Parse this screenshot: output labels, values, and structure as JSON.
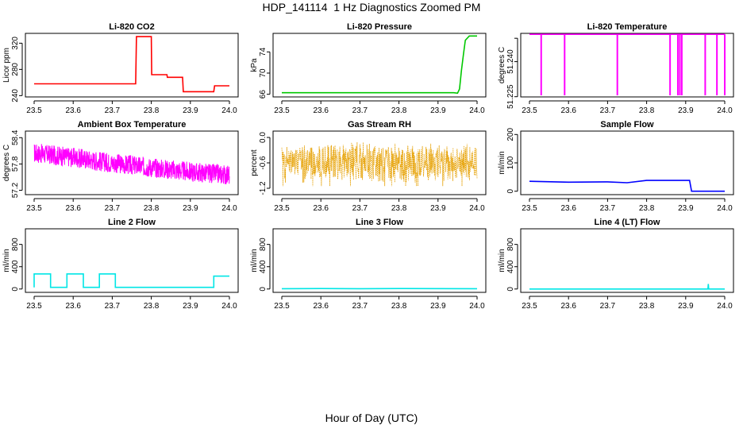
{
  "figure": {
    "title": "HDP_141114  1 Hz Diagnostics Zoomed PM",
    "xlabel": "Hour of Day (UTC)"
  },
  "chart_data": [
    {
      "type": "line",
      "title": "Li-820 CO2",
      "ylabel": "Licor ppm",
      "color": "#ff0000",
      "xlim": [
        23.5,
        24.0
      ],
      "ylim": [
        238,
        335
      ],
      "xticks": [
        23.5,
        23.6,
        23.7,
        23.8,
        23.9,
        24.0
      ],
      "yticks": [
        {
          "v": 240,
          "label": "240"
        },
        {
          "v": 280,
          "label": "280"
        },
        {
          "v": 320,
          "label": "320"
        }
      ],
      "series": [
        {
          "name": "CO2",
          "x": [
            23.5,
            23.76,
            23.762,
            23.8,
            23.801,
            23.84,
            23.841,
            23.88,
            23.882,
            23.93,
            23.96,
            23.962,
            24.0
          ],
          "values": [
            258,
            258,
            330,
            330,
            272,
            272,
            268,
            268,
            246,
            246,
            246,
            255,
            255
          ]
        }
      ]
    },
    {
      "type": "line",
      "title": "Li-820 Pressure",
      "ylabel": "kPa",
      "color": "#00c800",
      "xlim": [
        23.5,
        24.0
      ],
      "ylim": [
        65.5,
        77.5
      ],
      "xticks": [
        23.5,
        23.6,
        23.7,
        23.8,
        23.9,
        24.0
      ],
      "yticks": [
        {
          "v": 66,
          "label": "66"
        },
        {
          "v": 70,
          "label": "70"
        },
        {
          "v": 74,
          "label": "74"
        }
      ],
      "series": [
        {
          "name": "Pressure",
          "x": [
            23.5,
            23.94,
            23.95,
            23.955,
            23.96,
            23.965,
            23.97,
            23.98,
            24.0
          ],
          "values": [
            66.3,
            66.3,
            66.2,
            67.0,
            70.5,
            73.5,
            76.2,
            77.0,
            77.0
          ]
        }
      ]
    },
    {
      "type": "line",
      "title": "Li-820 Temperature",
      "ylabel": "degrees C",
      "color": "#ff00ff",
      "xlim": [
        23.5,
        24.0
      ],
      "ylim": [
        51.2249,
        51.2521
      ],
      "xticks": [
        23.5,
        23.6,
        23.7,
        23.8,
        23.9,
        24.0
      ],
      "yticks": [
        {
          "v": 51.225,
          "label": "51.225"
        },
        {
          "v": 51.24,
          "label": "51.240"
        },
        {
          "v": 51.25,
          "label": ""
        }
      ],
      "baseline": 51.2517,
      "spikes": [
        23.53,
        23.59,
        23.725,
        23.86,
        23.88,
        23.885,
        23.89,
        23.95,
        23.98,
        24.0
      ]
    },
    {
      "type": "line",
      "title": "Ambient Box Temperature",
      "ylabel": "degrees C",
      "color": "#ff00ff",
      "xlim": [
        23.5,
        24.0
      ],
      "ylim": [
        57.1,
        58.55
      ],
      "xticks": [
        23.5,
        23.6,
        23.7,
        23.8,
        23.9,
        24.0
      ],
      "yticks": [
        {
          "v": 57.2,
          "label": "57.2"
        },
        {
          "v": 57.8,
          "label": "57.8"
        },
        {
          "v": 58.4,
          "label": "58.4"
        }
      ],
      "trend": {
        "x": [
          23.5,
          23.6,
          23.7,
          23.8,
          23.9,
          24.0
        ],
        "values": [
          58.05,
          57.95,
          57.82,
          57.72,
          57.62,
          57.55
        ]
      },
      "noise": 0.45
    },
    {
      "type": "scatter",
      "title": "Gas Stream RH",
      "ylabel": "percent",
      "color": "#e6a000",
      "xlim": [
        23.5,
        24.0
      ],
      "ylim": [
        -1.35,
        0.15
      ],
      "xticks": [
        23.5,
        23.6,
        23.7,
        23.8,
        23.9,
        24.0
      ],
      "yticks": [
        {
          "v": -1.2,
          "label": "-1.2"
        },
        {
          "v": -0.6,
          "label": "-0.6"
        },
        {
          "v": 0.0,
          "label": "0.0"
        }
      ],
      "center": -0.6,
      "spread": 0.5
    },
    {
      "type": "line",
      "title": "Sample Flow",
      "ylabel": "ml/min",
      "color": "#0000ff",
      "xlim": [
        23.5,
        24.0
      ],
      "ylim": [
        -12,
        212
      ],
      "xticks": [
        23.5,
        23.6,
        23.7,
        23.8,
        23.9,
        24.0
      ],
      "yticks": [
        {
          "v": 0,
          "label": "0"
        },
        {
          "v": 100,
          "label": "100"
        },
        {
          "v": 200,
          "label": "200"
        }
      ],
      "series": [
        {
          "name": "Sample Flow",
          "x": [
            23.5,
            23.6,
            23.7,
            23.75,
            23.8,
            23.91,
            23.915,
            24.0
          ],
          "values": [
            35,
            32,
            33,
            30,
            38,
            38,
            0,
            0
          ]
        }
      ]
    },
    {
      "type": "line",
      "title": "Line 2 Flow",
      "ylabel": "ml/min",
      "color": "#00e6e6",
      "xlim": [
        23.5,
        24.0
      ],
      "ylim": [
        -60,
        1080
      ],
      "xticks": [
        23.5,
        23.6,
        23.7,
        23.8,
        23.9,
        24.0
      ],
      "yticks": [
        {
          "v": 0,
          "label": "0"
        },
        {
          "v": 400,
          "label": "400"
        },
        {
          "v": 800,
          "label": "800"
        }
      ],
      "series": [
        {
          "name": "Line 2 Flow",
          "x": [
            23.5,
            23.5,
            23.542,
            23.542,
            23.584,
            23.584,
            23.626,
            23.626,
            23.667,
            23.667,
            23.708,
            23.708,
            23.96,
            23.96,
            24.0
          ],
          "values": [
            30,
            270,
            270,
            30,
            30,
            270,
            270,
            30,
            30,
            270,
            270,
            30,
            30,
            230,
            230
          ]
        }
      ]
    },
    {
      "type": "line",
      "title": "Line 3 Flow",
      "ylabel": "ml/min",
      "color": "#00e6e6",
      "xlim": [
        23.5,
        24.0
      ],
      "ylim": [
        -60,
        1080
      ],
      "xticks": [
        23.5,
        23.6,
        23.7,
        23.8,
        23.9,
        24.0
      ],
      "yticks": [
        {
          "v": 0,
          "label": "0"
        },
        {
          "v": 400,
          "label": "400"
        },
        {
          "v": 800,
          "label": "800"
        }
      ],
      "series": [
        {
          "name": "Line 3 Flow",
          "x": [
            23.5,
            23.6,
            23.7,
            23.8,
            23.9,
            24.0
          ],
          "values": [
            5,
            8,
            6,
            9,
            7,
            5
          ]
        }
      ]
    },
    {
      "type": "line",
      "title": "Line 4 (LT) Flow",
      "ylabel": "ml/min",
      "color": "#00e6e6",
      "xlim": [
        23.5,
        24.0
      ],
      "ylim": [
        -60,
        1080
      ],
      "xticks": [
        23.5,
        23.6,
        23.7,
        23.8,
        23.9,
        24.0
      ],
      "yticks": [
        {
          "v": 0,
          "label": "0"
        },
        {
          "v": 400,
          "label": "400"
        },
        {
          "v": 800,
          "label": "800"
        }
      ],
      "series": [
        {
          "name": "Line 4 Flow",
          "x": [
            23.5,
            23.957,
            23.958,
            23.959,
            23.96,
            24.0
          ],
          "values": [
            0,
            0,
            90,
            0,
            0,
            0
          ]
        }
      ]
    }
  ]
}
